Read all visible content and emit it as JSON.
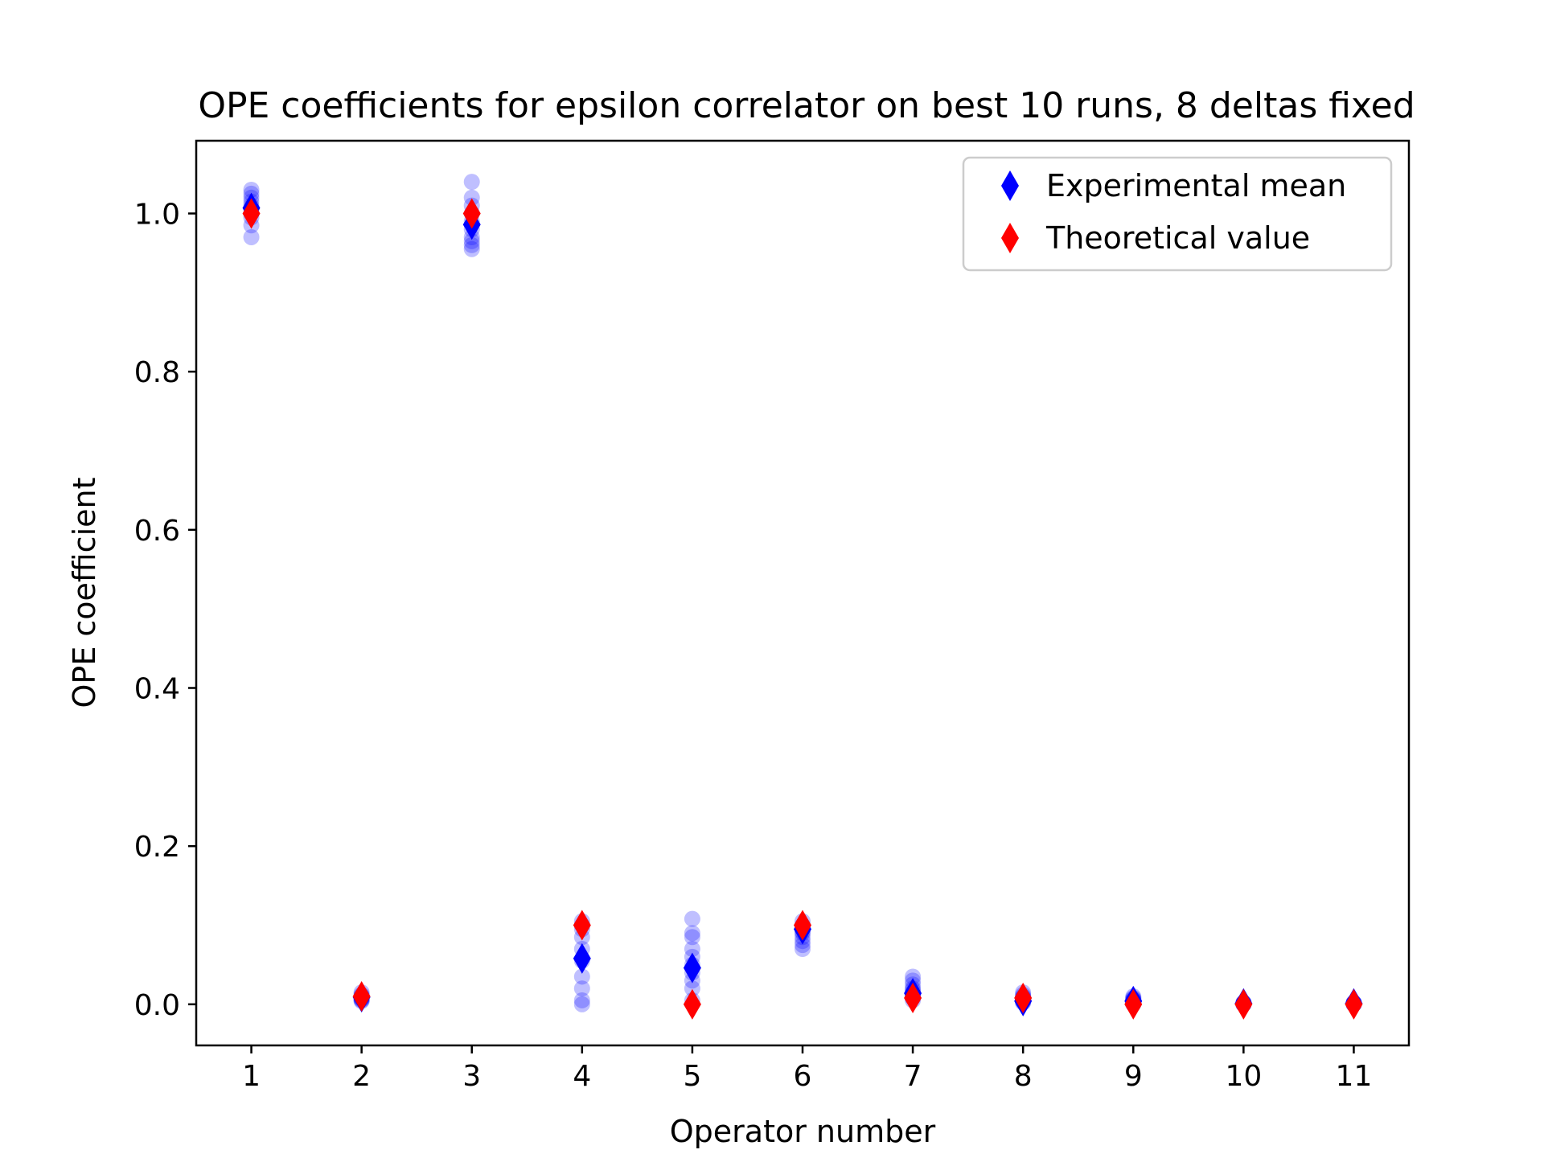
{
  "chart_data": {
    "type": "scatter",
    "title": "OPE coefficients for epsilon correlator on best 10 runs, 8 deltas fixed",
    "xlabel": "Operator number",
    "ylabel": "OPE coefficient",
    "xlim": [
      0.5,
      11.5
    ],
    "ylim": [
      -0.052,
      1.092
    ],
    "xticks": [
      1,
      2,
      3,
      4,
      5,
      6,
      7,
      8,
      9,
      10,
      11
    ],
    "yticks": [
      0.0,
      0.2,
      0.4,
      0.6,
      0.8,
      1.0
    ],
    "ytick_labels": [
      "0.0",
      "0.2",
      "0.4",
      "0.6",
      "0.8",
      "1.0"
    ],
    "grid": false,
    "legend_position": "top-right",
    "colors": {
      "runs": "#0000ff",
      "experimental": "#0000ff",
      "theoretical": "#ff0000"
    },
    "series": [
      {
        "role": "runs",
        "points": [
          [
            1,
            1.03
          ],
          [
            1,
            1.025
          ],
          [
            1,
            1.02
          ],
          [
            1,
            1.015
          ],
          [
            1,
            1.01
          ],
          [
            1,
            1.005
          ],
          [
            1,
            1.0
          ],
          [
            1,
            0.995
          ],
          [
            1,
            0.985
          ],
          [
            1,
            0.97
          ],
          [
            2,
            0.015
          ],
          [
            2,
            0.012
          ],
          [
            2,
            0.01
          ],
          [
            2,
            0.008
          ],
          [
            2,
            0.006
          ],
          [
            2,
            0.005
          ],
          [
            2,
            0.004
          ],
          [
            2,
            0.011
          ],
          [
            2,
            0.009
          ],
          [
            2,
            0.007
          ],
          [
            3,
            1.04
          ],
          [
            3,
            1.02
          ],
          [
            3,
            1.01
          ],
          [
            3,
            1.0
          ],
          [
            3,
            0.99
          ],
          [
            3,
            0.98
          ],
          [
            3,
            0.97
          ],
          [
            3,
            0.965
          ],
          [
            3,
            0.96
          ],
          [
            3,
            0.955
          ],
          [
            4,
            0.105
          ],
          [
            4,
            0.1
          ],
          [
            4,
            0.095
          ],
          [
            4,
            0.085
          ],
          [
            4,
            0.07
          ],
          [
            4,
            0.055
          ],
          [
            4,
            0.035
          ],
          [
            4,
            0.02
          ],
          [
            4,
            0.005
          ],
          [
            4,
            0.0
          ],
          [
            5,
            0.108
          ],
          [
            5,
            0.09
          ],
          [
            5,
            0.085
          ],
          [
            5,
            0.07
          ],
          [
            5,
            0.06
          ],
          [
            5,
            0.05
          ],
          [
            5,
            0.04
          ],
          [
            5,
            0.03
          ],
          [
            5,
            0.02
          ],
          [
            5,
            0.005
          ],
          [
            6,
            0.105
          ],
          [
            6,
            0.1
          ],
          [
            6,
            0.098
          ],
          [
            6,
            0.095
          ],
          [
            6,
            0.092
          ],
          [
            6,
            0.09
          ],
          [
            6,
            0.085
          ],
          [
            6,
            0.08
          ],
          [
            6,
            0.075
          ],
          [
            6,
            0.07
          ],
          [
            7,
            0.035
          ],
          [
            7,
            0.03
          ],
          [
            7,
            0.025
          ],
          [
            7,
            0.02
          ],
          [
            7,
            0.015
          ],
          [
            7,
            0.01
          ],
          [
            7,
            0.008
          ],
          [
            7,
            0.005
          ],
          [
            7,
            0.012
          ],
          [
            7,
            0.018
          ],
          [
            8,
            0.015
          ],
          [
            8,
            0.012
          ],
          [
            8,
            0.01
          ],
          [
            8,
            0.008
          ],
          [
            8,
            0.006
          ],
          [
            8,
            0.004
          ],
          [
            8,
            0.002
          ],
          [
            8,
            0.005
          ],
          [
            8,
            0.009
          ],
          [
            8,
            0.003
          ],
          [
            9,
            0.01
          ],
          [
            9,
            0.008
          ],
          [
            9,
            0.006
          ],
          [
            9,
            0.005
          ],
          [
            9,
            0.004
          ],
          [
            9,
            0.003
          ],
          [
            9,
            0.002
          ],
          [
            9,
            0.001
          ],
          [
            9,
            0.007
          ],
          [
            9,
            0.0
          ],
          [
            10,
            0.002
          ],
          [
            10,
            0.001
          ],
          [
            10,
            0.0
          ],
          [
            10,
            0.001
          ],
          [
            10,
            0.002
          ],
          [
            10,
            0.0
          ],
          [
            10,
            0.001
          ],
          [
            10,
            0.0
          ],
          [
            10,
            0.002
          ],
          [
            10,
            0.001
          ],
          [
            11,
            0.002
          ],
          [
            11,
            0.001
          ],
          [
            11,
            0.0
          ],
          [
            11,
            0.001
          ],
          [
            11,
            0.002
          ],
          [
            11,
            0.0
          ],
          [
            11,
            0.001
          ],
          [
            11,
            0.0
          ],
          [
            11,
            0.002
          ],
          [
            11,
            0.001
          ]
        ]
      },
      {
        "role": "experimental",
        "name": "Experimental mean",
        "x": [
          1,
          2,
          3,
          4,
          5,
          6,
          7,
          8,
          9,
          10,
          11
        ],
        "y": [
          1.007,
          0.009,
          0.986,
          0.058,
          0.046,
          0.095,
          0.014,
          0.004,
          0.004,
          0.001,
          0.001
        ]
      },
      {
        "role": "theoretical",
        "name": "Theoretical value",
        "x": [
          1,
          2,
          3,
          4,
          5,
          6,
          7,
          8,
          9,
          10,
          11
        ],
        "y": [
          1.0,
          0.01,
          1.0,
          0.1,
          0.0,
          0.1,
          0.008,
          0.008,
          0.0,
          0.0,
          0.0
        ]
      }
    ]
  }
}
